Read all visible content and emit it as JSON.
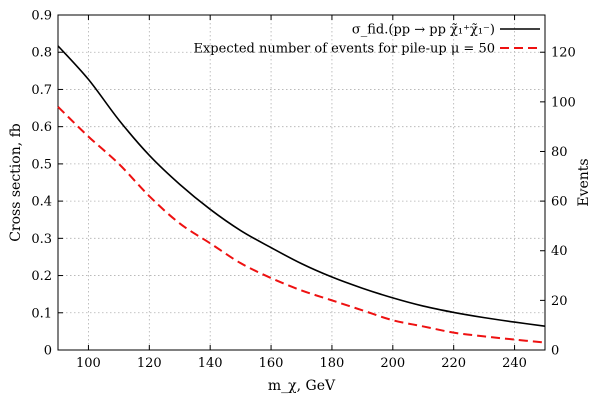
{
  "chart_data": {
    "type": "line",
    "title": "",
    "xlabel": "m_χ, GeV",
    "ylabel": "Cross section, fb",
    "y2label": "Events",
    "xlim": [
      90,
      250
    ],
    "ylim": [
      0,
      0.9
    ],
    "y2lim": [
      0,
      135
    ],
    "x_ticks": [
      "100",
      "120",
      "140",
      "160",
      "180",
      "200",
      "220",
      "240"
    ],
    "y_ticks": [
      "0",
      "0.1",
      "0.2",
      "0.3",
      "0.4",
      "0.5",
      "0.6",
      "0.7",
      "0.8",
      "0.9"
    ],
    "y2_ticks": [
      "0",
      "20",
      "40",
      "60",
      "80",
      "100",
      "120"
    ],
    "grid": true,
    "legend_position": "top-right",
    "series": [
      {
        "name": "σ_fid.(pp → pp χ̃₁⁺χ̃₁⁻)",
        "axis": "left",
        "color": "#000000",
        "style": "solid",
        "x": [
          90,
          100,
          110,
          120,
          130,
          140,
          150,
          160,
          170,
          180,
          190,
          200,
          210,
          220,
          230,
          240,
          250
        ],
        "y": [
          0.817,
          0.727,
          0.618,
          0.523,
          0.445,
          0.378,
          0.321,
          0.275,
          0.232,
          0.196,
          0.166,
          0.14,
          0.118,
          0.101,
          0.087,
          0.075,
          0.064
        ]
      },
      {
        "name": "Expected number of events for pile-up μ = 50",
        "axis": "right",
        "color": "#ee1111",
        "style": "dashed",
        "x": [
          90,
          100,
          110,
          120,
          130,
          140,
          150,
          160,
          170,
          180,
          190,
          200,
          210,
          220,
          230,
          240,
          250
        ],
        "y": [
          98,
          86,
          75,
          62,
          51,
          43,
          35,
          29,
          24,
          20,
          16,
          12,
          9.5,
          7,
          5.5,
          4.2,
          3
        ]
      }
    ]
  }
}
